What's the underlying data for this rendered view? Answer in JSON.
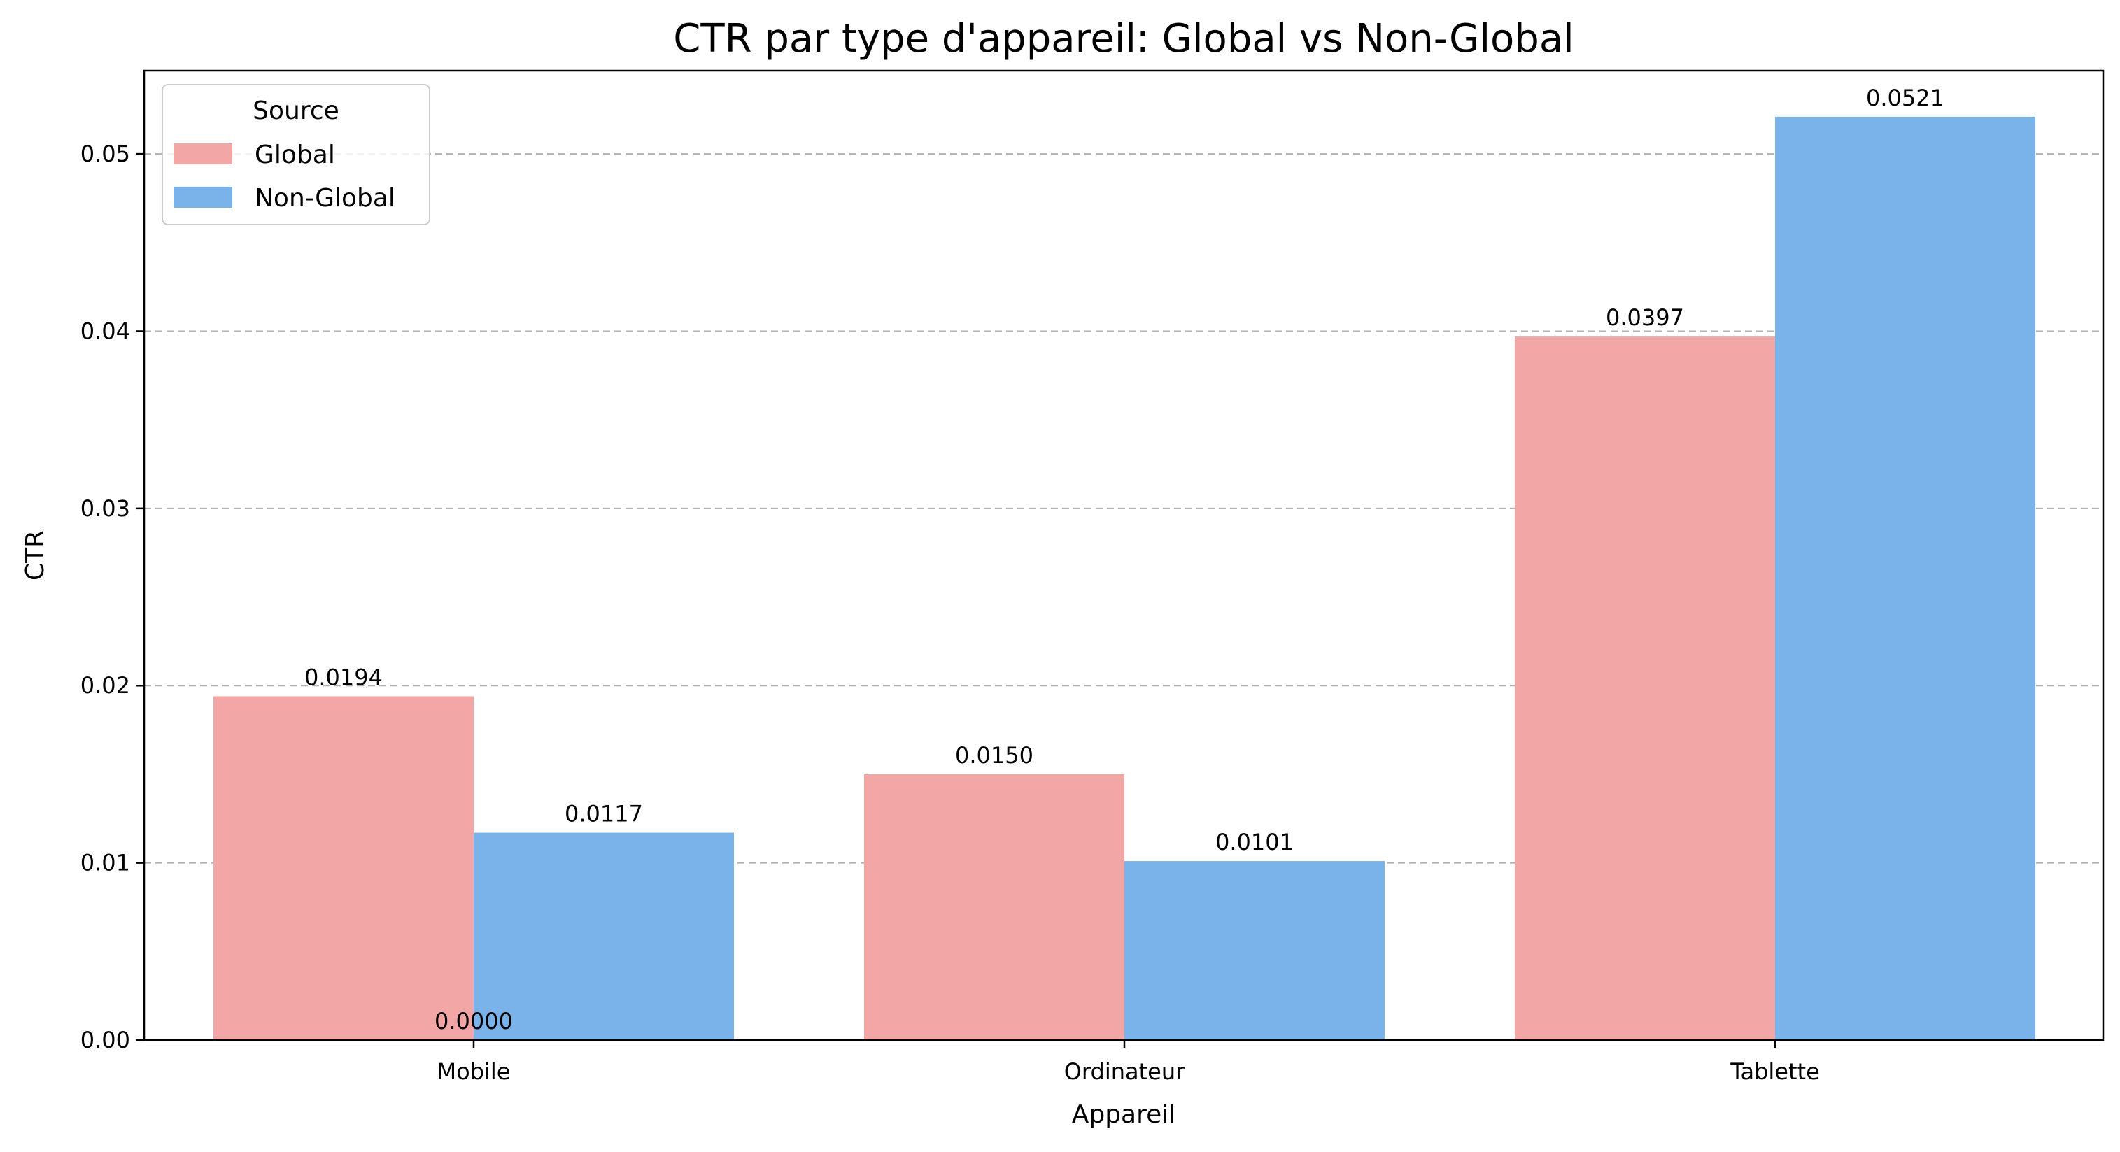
{
  "chart_data": {
    "type": "bar",
    "title": "CTR par type d'appareil: Global vs Non-Global",
    "xlabel": "Appareil",
    "ylabel": "CTR",
    "categories": [
      "Mobile",
      "Ordinateur",
      "Tablette"
    ],
    "series": [
      {
        "name": "Global",
        "color": "#f2a6a6",
        "values": [
          0.0194,
          0.015,
          0.0397
        ],
        "labels": [
          "0.0194",
          "0.0150",
          "0.0397"
        ]
      },
      {
        "name": "Non-Global",
        "color": "#7ab2ea",
        "values": [
          0.0117,
          0.0101,
          0.0521
        ],
        "labels": [
          "0.0117",
          "0.0101",
          "0.0521"
        ]
      }
    ],
    "extra_annotations": [
      {
        "category": "Mobile",
        "text": "0.0000",
        "value": 0
      }
    ],
    "ylim": [
      0,
      0.0547
    ],
    "yticks": [
      0.0,
      0.01,
      0.02,
      0.03,
      0.04,
      0.05
    ],
    "ytick_labels": [
      "0.00",
      "0.01",
      "0.02",
      "0.03",
      "0.04",
      "0.05"
    ],
    "grid": "y dashed",
    "legend": {
      "title": "Source",
      "placement": "top-left"
    }
  }
}
